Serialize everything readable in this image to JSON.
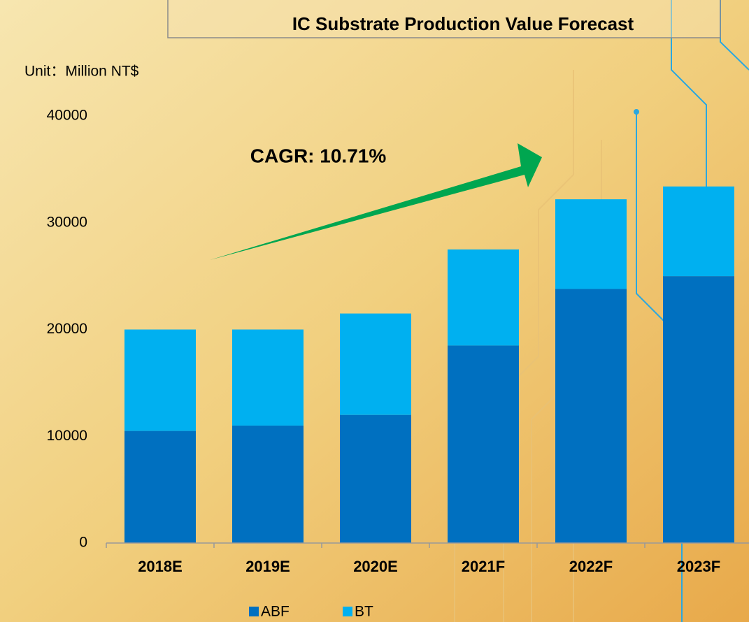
{
  "chart_data": {
    "type": "stacked_bar",
    "title": "IC Substrate Production Value Forecast",
    "y_label": "Unit：Million NT$",
    "annotation": "CAGR: 10.71%",
    "categories": [
      "2018E",
      "2019E",
      "2020E",
      "2021F",
      "2022F",
      "2023F"
    ],
    "series": [
      {
        "name": "ABF",
        "color": "#0070c0",
        "values": [
          10500,
          11000,
          12000,
          18500,
          23800,
          25000
        ]
      },
      {
        "name": "BT",
        "color": "#00b0f0",
        "values": [
          9500,
          9000,
          9500,
          9000,
          8400,
          8400
        ]
      }
    ],
    "ylim": [
      0,
      40000
    ],
    "yticks": [
      0,
      10000,
      20000,
      30000,
      40000
    ],
    "grid": false,
    "legend": "bottom"
  }
}
